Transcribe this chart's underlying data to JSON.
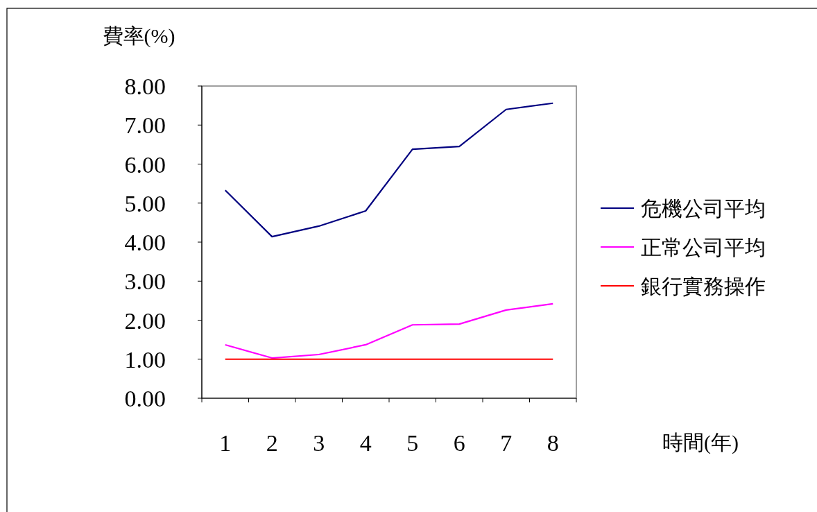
{
  "chart_data": {
    "type": "line",
    "ylabel": "費率(%)",
    "xlabel": "時間(年)",
    "categories": [
      "1",
      "2",
      "3",
      "4",
      "5",
      "6",
      "7",
      "8"
    ],
    "ylim": [
      0,
      8
    ],
    "yticks": [
      {
        "value": 0,
        "label": "0.00"
      },
      {
        "value": 1,
        "label": "1.00"
      },
      {
        "value": 2,
        "label": "2.00"
      },
      {
        "value": 3,
        "label": "3.00"
      },
      {
        "value": 4,
        "label": "4.00"
      },
      {
        "value": 5,
        "label": "5.00"
      },
      {
        "value": 6,
        "label": "6.00"
      },
      {
        "value": 7,
        "label": "7.00"
      },
      {
        "value": 8,
        "label": "8.00"
      }
    ],
    "grid": false,
    "legend": "right",
    "marker": "none",
    "line_style": "solid",
    "series": [
      {
        "name": "危機公司平均",
        "color": "#000080",
        "values": [
          5.33,
          4.14,
          4.41,
          4.8,
          6.38,
          6.45,
          7.4,
          7.56
        ]
      },
      {
        "name": "正常公司平均",
        "color": "#ff00ff",
        "values": [
          1.37,
          1.03,
          1.12,
          1.37,
          1.88,
          1.9,
          2.26,
          2.42
        ]
      },
      {
        "name": "銀行實務操作",
        "color": "#ff0000",
        "values": [
          1,
          1,
          1,
          1,
          1,
          1,
          1,
          1
        ]
      }
    ]
  }
}
